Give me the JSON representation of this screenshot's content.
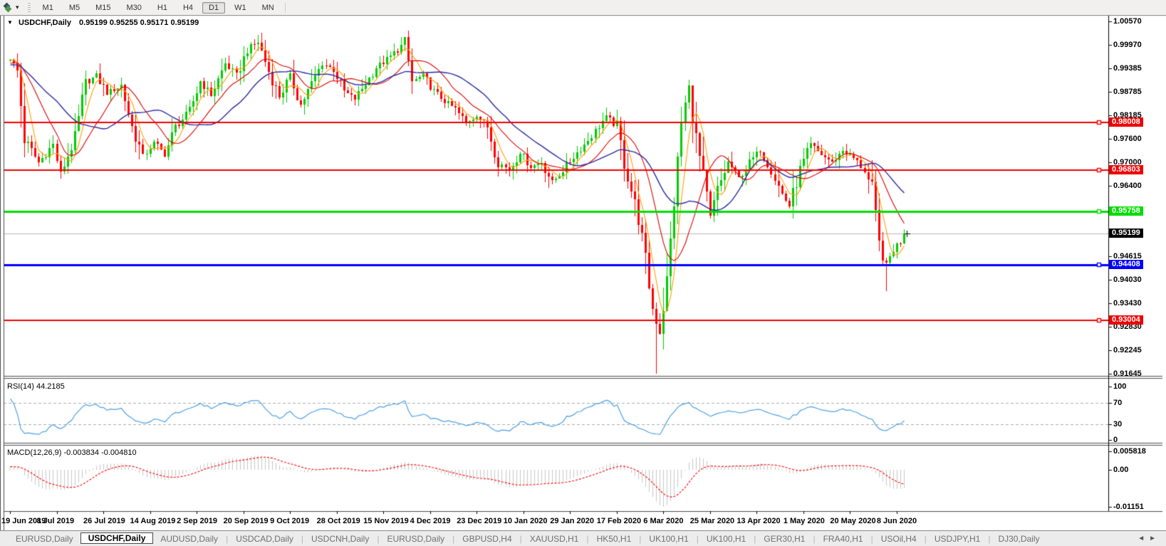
{
  "toolbar": {
    "timeframes": [
      "M1",
      "M5",
      "M15",
      "M30",
      "H1",
      "H4",
      "D1",
      "W1",
      "MN"
    ],
    "active_timeframe": "D1",
    "dropdown_icon": "▾"
  },
  "chart": {
    "menu_arrow": "▼",
    "title": "USDCHF,Daily",
    "ohlc_text": "0.95199 0.95255 0.95171 0.95199"
  },
  "price_axis": {
    "ticks": [
      "1.00570",
      "0.99970",
      "0.99385",
      "0.98785",
      "0.98185",
      "0.97600",
      "0.97000",
      "0.96400",
      "0.94615",
      "0.94030",
      "0.93430",
      "0.92830",
      "0.92245",
      "0.91645"
    ],
    "line_labels": [
      {
        "text": "0.98008",
        "value": 0.98008,
        "bg": "#f00000",
        "fg": "#ffffff"
      },
      {
        "text": "0.96803",
        "value": 0.96803,
        "bg": "#f00000",
        "fg": "#ffffff"
      },
      {
        "text": "0.95758",
        "value": 0.95758,
        "bg": "#00dd00",
        "fg": "#ffffff"
      },
      {
        "text": "0.95199",
        "value": 0.95199,
        "bg": "#000000",
        "fg": "#ffffff"
      },
      {
        "text": "0.94408",
        "value": 0.94408,
        "bg": "#0000ff",
        "fg": "#ffffff"
      },
      {
        "text": "0.93004",
        "value": 0.93004,
        "bg": "#f00000",
        "fg": "#ffffff"
      }
    ]
  },
  "rsi_panel": {
    "label": "RSI(14) 44.2185",
    "axis": [
      {
        "text": "100",
        "value": 100
      },
      {
        "text": "70",
        "value": 70
      },
      {
        "text": "30",
        "value": 30
      },
      {
        "text": "0",
        "value": 0
      }
    ],
    "levels": [
      70,
      30
    ],
    "line_color": "#4aa0e6"
  },
  "macd_panel": {
    "label": "MACD(12,26,9) -0.003834 -0.004810",
    "axis": [
      {
        "text": "0.005818",
        "value": 0.005818
      },
      {
        "text": "0.00",
        "value": 0
      },
      {
        "text": "-0.01151",
        "value": -0.01151
      }
    ],
    "hist_color": "#c6c6c6",
    "signal_color": "#ff0000"
  },
  "date_axis": {
    "labels": [
      "19 Jun 2019",
      "8 Jul 2019",
      "26 Jul 2019",
      "14 Aug 2019",
      "2 Sep 2019",
      "20 Sep 2019",
      "9 Oct 2019",
      "28 Oct 2019",
      "15 Nov 2019",
      "4 Dec 2019",
      "23 Dec 2019",
      "10 Jan 2020",
      "29 Jan 2020",
      "17 Feb 2020",
      "6 Mar 2020",
      "25 Mar 2020",
      "13 Apr 2020",
      "1 May 2020",
      "20 May 2020",
      "8 Jun 2020"
    ]
  },
  "tabs": {
    "items": [
      {
        "label": "EURUSD,Daily",
        "active": false
      },
      {
        "label": "USDCHF,Daily",
        "active": true
      },
      {
        "label": "AUDUSD,Daily",
        "active": false
      },
      {
        "label": "USDCAD,Daily",
        "active": false
      },
      {
        "label": "USDCNH,Daily",
        "active": false
      },
      {
        "label": "EURUSD,Daily",
        "active": false
      },
      {
        "label": "GBPUSD,H4",
        "active": false
      },
      {
        "label": "XAUUSD,H1",
        "active": false
      },
      {
        "label": "HK50,H1",
        "active": false
      },
      {
        "label": "UK100,H1",
        "active": false
      },
      {
        "label": "UK100,H1",
        "active": false
      },
      {
        "label": "GER30,H1",
        "active": false
      },
      {
        "label": "FRA40,H1",
        "active": false
      },
      {
        "label": "USOil,H4",
        "active": false
      },
      {
        "label": "USDJPY,H1",
        "active": false
      },
      {
        "label": "DJ30,Daily",
        "active": false
      }
    ],
    "scroll_left": "◄",
    "scroll_right": "►"
  },
  "chart_data": {
    "type": "candlestick",
    "symbol": "USDCHF",
    "timeframe": "Daily",
    "visible_bars": 250,
    "ylim": [
      0.913,
      1.006
    ],
    "up_color": "#00cc00",
    "down_color": "#ff0000",
    "pre_anchors": [
      [
        -30,
        0.99
      ],
      [
        -22,
        0.9955
      ],
      [
        -14,
        0.993
      ],
      [
        -6,
        0.995
      ]
    ],
    "close_anchors": [
      [
        0,
        0.9965
      ],
      [
        2,
        0.993
      ],
      [
        4,
        0.976
      ],
      [
        8,
        0.97
      ],
      [
        12,
        0.9745
      ],
      [
        14,
        0.9672
      ],
      [
        18,
        0.976
      ],
      [
        21,
        0.99
      ],
      [
        24,
        0.992
      ],
      [
        27,
        0.9875
      ],
      [
        31,
        0.9895
      ],
      [
        34,
        0.979
      ],
      [
        37,
        0.9715
      ],
      [
        40,
        0.975
      ],
      [
        43,
        0.972
      ],
      [
        46,
        0.979
      ],
      [
        50,
        0.983
      ],
      [
        53,
        0.9905
      ],
      [
        56,
        0.987
      ],
      [
        60,
        0.995
      ],
      [
        63,
        0.992
      ],
      [
        66,
        0.9985
      ],
      [
        69,
        1.0005
      ],
      [
        72,
        0.993
      ],
      [
        75,
        0.9865
      ],
      [
        78,
        0.992
      ],
      [
        81,
        0.9845
      ],
      [
        84,
        0.99
      ],
      [
        87,
        0.995
      ],
      [
        90,
        0.9935
      ],
      [
        93,
        0.988
      ],
      [
        96,
        0.986
      ],
      [
        99,
        0.99
      ],
      [
        102,
        0.994
      ],
      [
        105,
        0.996
      ],
      [
        108,
        0.9985
      ],
      [
        110,
        1.0005
      ],
      [
        112,
        0.9905
      ],
      [
        115,
        0.992
      ],
      [
        118,
        0.988
      ],
      [
        121,
        0.9855
      ],
      [
        124,
        0.9835
      ],
      [
        127,
        0.98
      ],
      [
        130,
        0.982
      ],
      [
        133,
        0.979
      ],
      [
        136,
        0.97
      ],
      [
        139,
        0.968
      ],
      [
        142,
        0.9725
      ],
      [
        145,
        0.969
      ],
      [
        148,
        0.97
      ],
      [
        151,
        0.965
      ],
      [
        154,
        0.968
      ],
      [
        157,
        0.9715
      ],
      [
        160,
        0.9745
      ],
      [
        163,
        0.978
      ],
      [
        166,
        0.9815
      ],
      [
        169,
        0.979
      ],
      [
        171,
        0.97
      ],
      [
        173,
        0.963
      ],
      [
        175,
        0.956
      ],
      [
        177,
        0.945
      ],
      [
        179,
        0.933
      ],
      [
        181,
        0.927
      ],
      [
        183,
        0.94
      ],
      [
        185,
        0.96
      ],
      [
        187,
        0.98
      ],
      [
        189,
        0.989
      ],
      [
        191,
        0.976
      ],
      [
        193,
        0.966
      ],
      [
        195,
        0.956
      ],
      [
        197,
        0.963
      ],
      [
        200,
        0.97
      ],
      [
        203,
        0.966
      ],
      [
        206,
        0.97
      ],
      [
        209,
        0.973
      ],
      [
        212,
        0.968
      ],
      [
        215,
        0.962
      ],
      [
        217,
        0.959
      ],
      [
        220,
        0.968
      ],
      [
        223,
        0.9745
      ],
      [
        226,
        0.972
      ],
      [
        229,
        0.97
      ],
      [
        232,
        0.973
      ],
      [
        235,
        0.971
      ],
      [
        238,
        0.968
      ],
      [
        240,
        0.963
      ],
      [
        242,
        0.949
      ],
      [
        244,
        0.944
      ],
      [
        246,
        0.948
      ],
      [
        248,
        0.95
      ],
      [
        249,
        0.95199
      ]
    ],
    "wick_lows": [
      [
        14,
        0.9659
      ],
      [
        180,
        0.9165
      ],
      [
        217,
        0.9585
      ],
      [
        244,
        0.9373
      ]
    ],
    "wick_highs": [
      [
        69,
        1.0023
      ],
      [
        110,
        1.0017
      ],
      [
        166,
        0.9838
      ],
      [
        189,
        0.9901
      ]
    ],
    "last_close": 0.95199,
    "moving_averages": [
      {
        "period": 5,
        "color": "#ffa000"
      },
      {
        "period": 13,
        "color": "#dd0000"
      },
      {
        "period": 24,
        "color": "#2929a3"
      }
    ],
    "hlines": [
      {
        "value": 0.98008,
        "color": "#f00000",
        "width": 2
      },
      {
        "value": 0.96803,
        "color": "#f00000",
        "width": 2
      },
      {
        "value": 0.95758,
        "color": "#00dd00",
        "width": 3
      },
      {
        "value": 0.94408,
        "color": "#0000ff",
        "width": 3
      },
      {
        "value": 0.93004,
        "color": "#f00000",
        "width": 2
      }
    ],
    "current_price_line": {
      "value": 0.95199,
      "color": "#b8b8b8"
    }
  }
}
